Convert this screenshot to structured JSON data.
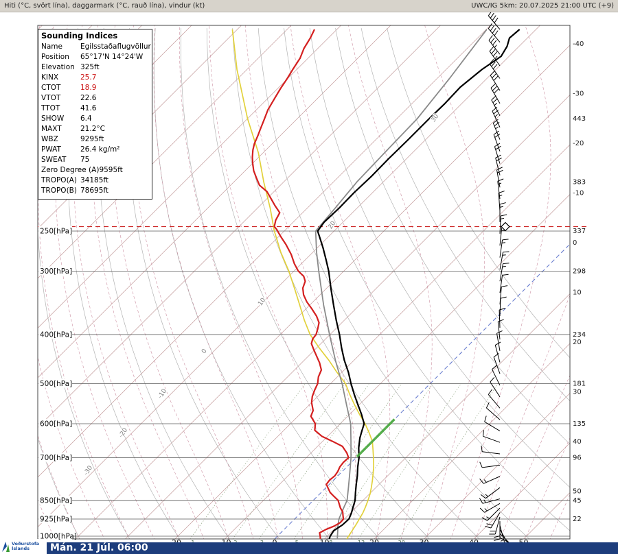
{
  "header": {
    "left": "Hiti (°C, svört lína), daggarmark (°C, rauð lína), vindur (kt)",
    "right": "UWC/IG 5km: 20.07.2025 21:00 UTC (+9)"
  },
  "footer": {
    "date_label": "Mán. 21 Júl. 06:00",
    "logo_line1": "Veðurstofa",
    "logo_line2": "Íslands"
  },
  "indices": {
    "title": "Sounding Indices",
    "rows": [
      {
        "label": "Name",
        "value": "Egilsstaðaflugvöllur",
        "red": false
      },
      {
        "label": "Position",
        "value": "65°17'N 14°24'W",
        "red": false
      },
      {
        "label": "Elevation",
        "value": "325ft",
        "red": false
      },
      {
        "label": "KINX",
        "value": "25.7",
        "red": true
      },
      {
        "label": "CTOT",
        "value": "18.9",
        "red": true
      },
      {
        "label": "VTOT",
        "value": "22.6",
        "red": false
      },
      {
        "label": "TTOT",
        "value": "41.6",
        "red": false
      },
      {
        "label": "SHOW",
        "value": "6.4",
        "red": false
      },
      {
        "label": "MAXT",
        "value": "21.2°C",
        "red": false
      },
      {
        "label": "WBZ",
        "value": "9295ft",
        "red": false
      },
      {
        "label": "PWAT",
        "value": "26.4 kg/m²",
        "red": false
      },
      {
        "label": "SWEAT",
        "value": "75",
        "red": false
      },
      {
        "label": "Zero Degree (A)",
        "value": "9595ft",
        "red": false
      },
      {
        "label": "TROPO(A)",
        "value": "34185ft",
        "red": false
      },
      {
        "label": "TROPO(B)",
        "value": "78695ft",
        "red": false
      }
    ]
  },
  "chart_data": {
    "type": "line",
    "title": "Skew-T log-P sounding",
    "x_axis": {
      "label": "°C",
      "ticks": [
        -20,
        -10,
        0,
        10,
        20,
        30,
        40,
        50
      ]
    },
    "y_axis": {
      "label": "hPa",
      "ticks": [
        250,
        300,
        400,
        500,
        600,
        700,
        850,
        925,
        1000
      ]
    },
    "pressure_labels": [
      {
        "p": 250,
        "text": "250[hPa]"
      },
      {
        "p": 300,
        "text": "300[hPa]"
      },
      {
        "p": 400,
        "text": "400[hPa]"
      },
      {
        "p": 500,
        "text": "500[hPa]"
      },
      {
        "p": 600,
        "text": "600[hPa]"
      },
      {
        "p": 700,
        "text": "700[hPa]"
      },
      {
        "p": 850,
        "text": "850[hPa]"
      },
      {
        "p": 925,
        "text": "925[hPa]"
      },
      {
        "p": 1000,
        "text": "1000[hPa]"
      }
    ],
    "right_height_labels": [
      {
        "p": 150,
        "text": "443"
      },
      {
        "p": 200,
        "text": "383"
      },
      {
        "p": 250,
        "text": "337"
      },
      {
        "p": 300,
        "text": "298"
      },
      {
        "p": 400,
        "text": "234"
      },
      {
        "p": 500,
        "text": "181"
      },
      {
        "p": 600,
        "text": "135"
      },
      {
        "p": 700,
        "text": "96"
      },
      {
        "p": 850,
        "text": "45"
      },
      {
        "p": 925,
        "text": "22"
      }
    ],
    "right_temp_labels": [
      -40,
      -30,
      -20,
      -10,
      0,
      10,
      20,
      30,
      40,
      50
    ],
    "moist_adiabat_labels": [
      {
        "text": "30",
        "x": 633,
        "y": 172
      },
      {
        "text": "20",
        "x": 483,
        "y": 328
      },
      {
        "text": "10",
        "x": 381,
        "y": 440
      },
      {
        "text": "0",
        "x": 297,
        "y": 512
      },
      {
        "text": "-10",
        "x": 236,
        "y": 574
      },
      {
        "text": "-20",
        "x": 179,
        "y": 631
      },
      {
        "text": "-30",
        "x": 128,
        "y": 686
      }
    ],
    "mixing_ratio_g_kg": [
      1,
      2,
      3,
      5,
      8,
      12,
      20
    ],
    "grid": {
      "isotherms": {
        "min": -150,
        "max": 60,
        "step": 10
      },
      "dry_adiabats": {
        "min": -80,
        "max": 100,
        "step": 10
      },
      "moist_adiabats": {
        "min": -60,
        "max": 55,
        "step": 5
      }
    },
    "tropopause_hpa": 245,
    "freezing_marker": {
      "t": 0,
      "p_from": 697,
      "p_to": 588,
      "color": "#49a93c"
    },
    "colors": {
      "isotherm": "#c49c9c",
      "zero_isotherm": "#6b7fd0",
      "dry_adiabat": "#aeaeae",
      "moist_adiabat": "#cc90a2",
      "mixing_ratio": "#93a786",
      "pressure_line": "#5a5a5a",
      "tropopause": "#cc2222",
      "barb": "#000000"
    },
    "series_order": [
      "reference_moist_adiabat",
      "parcel",
      "dewpoint",
      "temperature"
    ],
    "series": {
      "temperature": {
        "color": "#000000",
        "width": 2.2,
        "points": [
          [
            1013,
            11.0
          ],
          [
            1000,
            10.6
          ],
          [
            975,
            10.2
          ],
          [
            950,
            10.8
          ],
          [
            925,
            10.9
          ],
          [
            900,
            10.2
          ],
          [
            875,
            9.3
          ],
          [
            850,
            8.4
          ],
          [
            820,
            6.9
          ],
          [
            790,
            5.4
          ],
          [
            760,
            3.9
          ],
          [
            730,
            2.2
          ],
          [
            700,
            0.6
          ],
          [
            670,
            -1.4
          ],
          [
            640,
            -3.2
          ],
          [
            620,
            -4.2
          ],
          [
            600,
            -5.2
          ],
          [
            575,
            -7.6
          ],
          [
            550,
            -10.3
          ],
          [
            525,
            -13.1
          ],
          [
            500,
            -15.9
          ],
          [
            475,
            -18.7
          ],
          [
            450,
            -21.9
          ],
          [
            425,
            -25.0
          ],
          [
            400,
            -28.1
          ],
          [
            375,
            -31.6
          ],
          [
            350,
            -35.2
          ],
          [
            325,
            -39.0
          ],
          [
            300,
            -43.0
          ],
          [
            285,
            -45.8
          ],
          [
            270,
            -48.8
          ],
          [
            260,
            -51.0
          ],
          [
            250,
            -53.3
          ],
          [
            240,
            -53.8
          ],
          [
            225,
            -53.6
          ],
          [
            210,
            -53.7
          ],
          [
            195,
            -53.5
          ],
          [
            180,
            -53.6
          ],
          [
            165,
            -53.5
          ],
          [
            150,
            -53.5
          ],
          [
            140,
            -53.4
          ],
          [
            130,
            -53.6
          ],
          [
            120,
            -52.8
          ],
          [
            113,
            -51.6
          ],
          [
            108,
            -52.4
          ],
          [
            104,
            -53.6
          ],
          [
            100,
            -53.3
          ]
        ]
      },
      "dewpoint": {
        "color": "#d42020",
        "width": 2.2,
        "points": [
          [
            1013,
            9.2
          ],
          [
            1000,
            8.6
          ],
          [
            985,
            7.8
          ],
          [
            970,
            8.4
          ],
          [
            955,
            9.4
          ],
          [
            940,
            9.9
          ],
          [
            925,
            9.8
          ],
          [
            910,
            9.0
          ],
          [
            895,
            8.2
          ],
          [
            880,
            7.0
          ],
          [
            865,
            6.0
          ],
          [
            850,
            5.0
          ],
          [
            835,
            3.4
          ],
          [
            820,
            1.8
          ],
          [
            805,
            0.6
          ],
          [
            790,
            -0.6
          ],
          [
            775,
            -0.8
          ],
          [
            760,
            -0.6
          ],
          [
            745,
            -0.9
          ],
          [
            730,
            -1.4
          ],
          [
            715,
            -1.6
          ],
          [
            700,
            -1.5
          ],
          [
            685,
            -2.8
          ],
          [
            665,
            -5.0
          ],
          [
            650,
            -8.0
          ],
          [
            635,
            -11.2
          ],
          [
            618,
            -13.8
          ],
          [
            600,
            -15.0
          ],
          [
            580,
            -17.4
          ],
          [
            565,
            -18.1
          ],
          [
            545,
            -20.0
          ],
          [
            530,
            -21.1
          ],
          [
            515,
            -21.9
          ],
          [
            500,
            -22.6
          ],
          [
            485,
            -23.8
          ],
          [
            470,
            -24.6
          ],
          [
            455,
            -26.4
          ],
          [
            443,
            -28.1
          ],
          [
            430,
            -30.0
          ],
          [
            417,
            -31.9
          ],
          [
            408,
            -32.6
          ],
          [
            400,
            -32.8
          ],
          [
            390,
            -33.6
          ],
          [
            379,
            -34.6
          ],
          [
            368,
            -36.4
          ],
          [
            356,
            -38.8
          ],
          [
            345,
            -41.2
          ],
          [
            334,
            -43.3
          ],
          [
            324,
            -44.8
          ],
          [
            314,
            -45.7
          ],
          [
            307,
            -47.0
          ],
          [
            300,
            -49.1
          ],
          [
            290,
            -51.4
          ],
          [
            278,
            -53.9
          ],
          [
            266,
            -56.9
          ],
          [
            256,
            -59.7
          ],
          [
            248,
            -61.9
          ],
          [
            245,
            -62.9
          ],
          [
            238,
            -63.9
          ],
          [
            230,
            -64.6
          ],
          [
            223,
            -66.9
          ],
          [
            216,
            -69.1
          ],
          [
            209,
            -71.4
          ],
          [
            203,
            -74.2
          ],
          [
            196,
            -76.4
          ],
          [
            190,
            -78.3
          ],
          [
            184,
            -79.9
          ],
          [
            179,
            -81.2
          ],
          [
            173,
            -82.6
          ],
          [
            168,
            -83.6
          ],
          [
            162,
            -84.5
          ],
          [
            158,
            -85.2
          ],
          [
            151,
            -86.4
          ],
          [
            144,
            -87.7
          ],
          [
            137,
            -88.6
          ],
          [
            131,
            -89.4
          ],
          [
            125,
            -90.1
          ],
          [
            120,
            -90.8
          ],
          [
            114,
            -91.6
          ],
          [
            109,
            -92.8
          ],
          [
            104,
            -93.6
          ],
          [
            100,
            -94.5
          ]
        ]
      },
      "parcel": {
        "color": "#8a8a8a",
        "width": 1.8,
        "points": [
          [
            1013,
            12.6
          ],
          [
            975,
            11.0
          ],
          [
            950,
            9.9
          ],
          [
            925,
            8.9
          ],
          [
            900,
            8.2
          ],
          [
            875,
            7.5
          ],
          [
            850,
            6.8
          ],
          [
            800,
            4.4
          ],
          [
            750,
            1.8
          ],
          [
            700,
            -1.0
          ],
          [
            650,
            -4.3
          ],
          [
            600,
            -7.9
          ],
          [
            550,
            -12.6
          ],
          [
            500,
            -17.7
          ],
          [
            450,
            -23.7
          ],
          [
            400,
            -30.1
          ],
          [
            350,
            -37.2
          ],
          [
            300,
            -45.0
          ],
          [
            275,
            -49.3
          ],
          [
            250,
            -53.7
          ],
          [
            225,
            -54.4
          ],
          [
            200,
            -55.3
          ],
          [
            175,
            -55.6
          ],
          [
            150,
            -55.9
          ],
          [
            125,
            -57.5
          ],
          [
            100,
            -59.9
          ]
        ]
      },
      "reference_moist_adiabat": {
        "color": "#e2d13c",
        "width": 1.7,
        "points": [
          [
            100,
            -111
          ],
          [
            120,
            -102
          ],
          [
            150,
            -90
          ],
          [
            175,
            -81
          ],
          [
            200,
            -74
          ],
          [
            225,
            -67.5
          ],
          [
            250,
            -62
          ],
          [
            275,
            -56.5
          ],
          [
            300,
            -51
          ],
          [
            325,
            -46.3
          ],
          [
            350,
            -42
          ],
          [
            375,
            -38
          ],
          [
            400,
            -34
          ],
          [
            425,
            -29.5
          ],
          [
            450,
            -25
          ],
          [
            475,
            -21
          ],
          [
            500,
            -17
          ],
          [
            525,
            -14
          ],
          [
            550,
            -11
          ],
          [
            575,
            -8
          ],
          [
            600,
            -5
          ],
          [
            625,
            -2.4
          ],
          [
            650,
            0
          ],
          [
            675,
            1.8
          ],
          [
            700,
            3.5
          ],
          [
            725,
            5.1
          ],
          [
            750,
            6.5
          ],
          [
            775,
            7.8
          ],
          [
            800,
            9
          ],
          [
            825,
            10.1
          ],
          [
            850,
            11
          ],
          [
            875,
            11.8
          ],
          [
            900,
            12.5
          ],
          [
            925,
            13
          ],
          [
            950,
            13.5
          ],
          [
            975,
            13.9
          ],
          [
            1013,
            14.5
          ]
        ]
      }
    },
    "wind_barbs": [
      [
        100,
        320,
        40
      ],
      [
        106,
        320,
        40
      ],
      [
        112,
        322,
        35
      ],
      [
        118,
        325,
        35
      ],
      [
        125,
        325,
        30
      ],
      [
        132,
        328,
        30
      ],
      [
        140,
        330,
        30
      ],
      [
        148,
        332,
        25
      ],
      [
        156,
        335,
        25
      ],
      [
        165,
        338,
        25
      ],
      [
        174,
        340,
        20
      ],
      [
        184,
        343,
        20
      ],
      [
        194,
        346,
        20
      ],
      [
        205,
        350,
        20
      ],
      [
        216,
        353,
        15
      ],
      [
        228,
        356,
        15
      ],
      [
        240,
        0,
        15
      ],
      [
        253,
        3,
        15
      ],
      [
        267,
        6,
        15
      ],
      [
        282,
        8,
        15
      ],
      [
        298,
        10,
        15
      ],
      [
        314,
        10,
        15
      ],
      [
        331,
        8,
        10
      ],
      [
        349,
        5,
        10
      ],
      [
        368,
        2,
        10
      ],
      [
        388,
        358,
        10
      ],
      [
        409,
        354,
        10
      ],
      [
        431,
        350,
        10
      ],
      [
        454,
        345,
        10
      ],
      [
        478,
        340,
        10
      ],
      [
        504,
        334,
        10
      ],
      [
        531,
        327,
        10
      ],
      [
        559,
        320,
        10
      ],
      [
        589,
        311,
        10
      ],
      [
        620,
        301,
        10
      ],
      [
        653,
        290,
        10
      ],
      [
        688,
        277,
        10
      ],
      [
        724,
        262,
        10
      ],
      [
        762,
        246,
        15
      ],
      [
        802,
        233,
        15
      ],
      [
        844,
        255,
        15
      ],
      [
        862,
        240,
        15
      ],
      [
        880,
        225,
        15
      ],
      [
        898,
        210,
        20
      ],
      [
        916,
        195,
        20
      ],
      [
        934,
        180,
        20
      ],
      [
        952,
        165,
        15
      ],
      [
        970,
        150,
        15
      ],
      [
        988,
        135,
        15
      ],
      [
        1006,
        120,
        10
      ]
    ]
  }
}
